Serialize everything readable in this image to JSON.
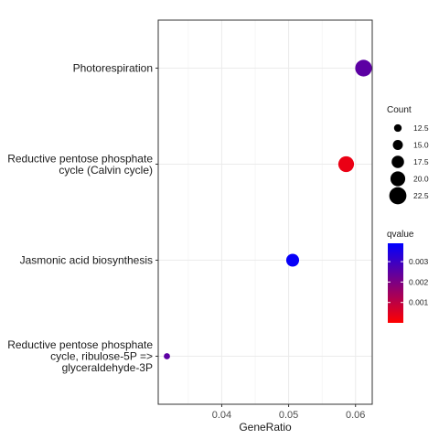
{
  "chart_data": {
    "type": "scatter",
    "title": "",
    "xlabel": "GeneRatio",
    "ylabel": "",
    "xlim": [
      0.0305,
      0.0625
    ],
    "x_ticks": [
      0.04,
      0.05,
      0.06
    ],
    "x_tick_labels": [
      "0.04",
      "0.05",
      "0.06"
    ],
    "grid": true,
    "categories": [
      "Photorespiration",
      "Reductive pentose phosphate cycle (Calvin cycle)",
      "Jasmonic acid biosynthesis",
      "Reductive pentose phosphate cycle, ribulose-5P => glyceraldehyde-3P"
    ],
    "category_lines": [
      [
        "Photorespiration"
      ],
      [
        "Reductive pentose phosphate",
        "cycle (Calvin cycle)"
      ],
      [
        "Jasmonic acid biosynthesis"
      ],
      [
        "Reductive pentose phosphate",
        "cycle, ribulose-5P =>",
        "glyceraldehyde-3P"
      ]
    ],
    "points": [
      {
        "category": "Photorespiration",
        "x": 0.0612,
        "count": 22,
        "qvalue": 0.0025
      },
      {
        "category": "Reductive pentose phosphate cycle (Calvin cycle)",
        "x": 0.0586,
        "count": 21,
        "qvalue": 0.0003
      },
      {
        "category": "Jasmonic acid biosynthesis",
        "x": 0.0506,
        "count": 18,
        "qvalue": 0.0038
      },
      {
        "category": "Reductive pentose phosphate cycle, ribulose-5P => glyceraldehyde-3P",
        "x": 0.0318,
        "count": 11,
        "qvalue": 0.0025
      }
    ],
    "legend": {
      "position": "right",
      "size": {
        "title": "Count",
        "values": [
          12.5,
          15.0,
          17.5,
          20.0,
          22.5
        ],
        "labels": [
          "12.5",
          "15.0",
          "17.5",
          "20.0",
          "22.5"
        ]
      },
      "color": {
        "title": "qvalue",
        "range": [
          0.0,
          0.0039
        ],
        "low_color": "#ff0000",
        "high_color": "#0000ff",
        "ticks": [
          0.001,
          0.002,
          0.003
        ],
        "tick_labels": [
          "0.001",
          "0.002",
          "0.003"
        ]
      }
    }
  }
}
